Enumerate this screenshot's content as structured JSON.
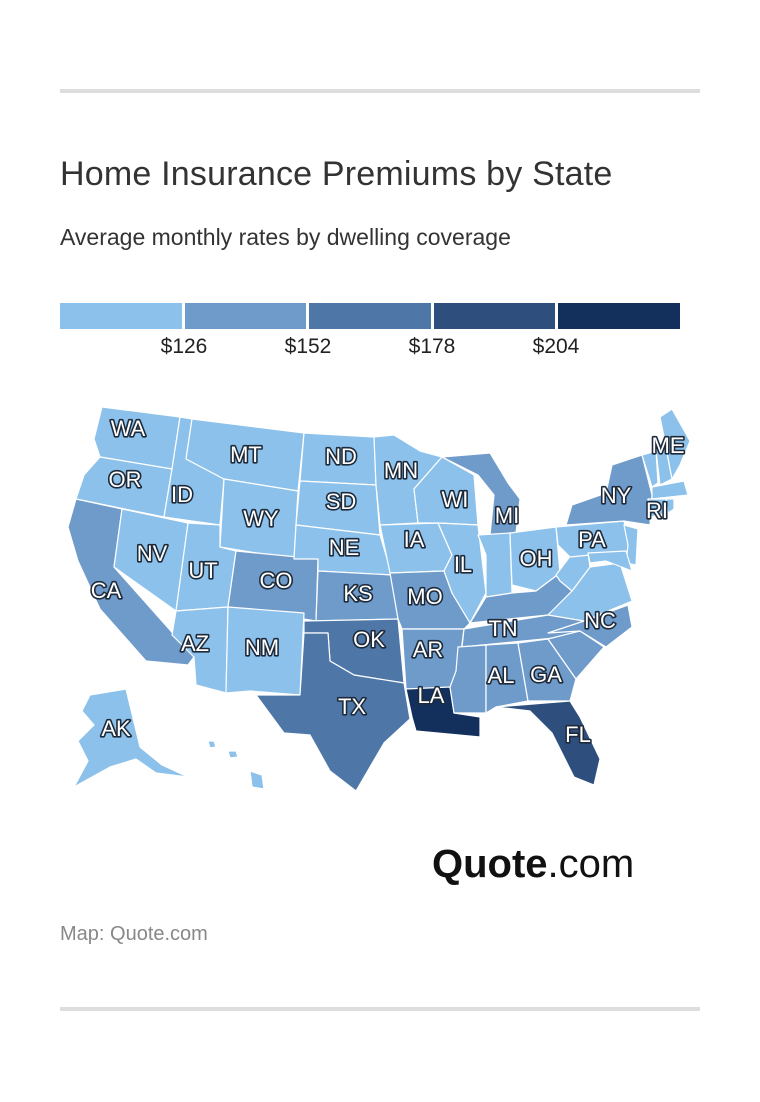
{
  "title": "Home Insurance Premiums by State",
  "subtitle": "Average monthly rates by dwelling coverage",
  "legend": {
    "colors": [
      "#8bc1ea",
      "#6f9bcb",
      "#4e77a8",
      "#2e4f7e",
      "#13305d"
    ],
    "thresholds": [
      "$126",
      "$152",
      "$178",
      "$204"
    ]
  },
  "chart_data": {
    "type": "choropleth",
    "bins": [
      {
        "label": "< $126",
        "color": "#8bc1ea"
      },
      {
        "label": "$126 – $152",
        "color": "#6f9bcb"
      },
      {
        "label": "$152 – $178",
        "color": "#4e77a8"
      },
      {
        "label": "$178 – $204",
        "color": "#2e4f7e"
      },
      {
        "label": "> $204",
        "color": "#13305d"
      }
    ],
    "states": [
      {
        "code": "WA",
        "bin": 0
      },
      {
        "code": "OR",
        "bin": 0
      },
      {
        "code": "CA",
        "bin": 1
      },
      {
        "code": "NV",
        "bin": 0
      },
      {
        "code": "ID",
        "bin": 0
      },
      {
        "code": "MT",
        "bin": 0
      },
      {
        "code": "WY",
        "bin": 0
      },
      {
        "code": "UT",
        "bin": 0
      },
      {
        "code": "AZ",
        "bin": 0
      },
      {
        "code": "CO",
        "bin": 1
      },
      {
        "code": "NM",
        "bin": 0
      },
      {
        "code": "ND",
        "bin": 0
      },
      {
        "code": "SD",
        "bin": 0
      },
      {
        "code": "NE",
        "bin": 0
      },
      {
        "code": "KS",
        "bin": 1
      },
      {
        "code": "OK",
        "bin": 2
      },
      {
        "code": "TX",
        "bin": 2
      },
      {
        "code": "MN",
        "bin": 0
      },
      {
        "code": "IA",
        "bin": 0
      },
      {
        "code": "MO",
        "bin": 1
      },
      {
        "code": "AR",
        "bin": 1
      },
      {
        "code": "LA",
        "bin": 4
      },
      {
        "code": "WI",
        "bin": 0
      },
      {
        "code": "IL",
        "bin": 0
      },
      {
        "code": "MI",
        "bin": 1
      },
      {
        "code": "IN",
        "bin": 0
      },
      {
        "code": "OH",
        "bin": 0
      },
      {
        "code": "KY",
        "bin": 1
      },
      {
        "code": "TN",
        "bin": 1
      },
      {
        "code": "MS",
        "bin": 1
      },
      {
        "code": "AL",
        "bin": 1
      },
      {
        "code": "GA",
        "bin": 1
      },
      {
        "code": "FL",
        "bin": 3
      },
      {
        "code": "SC",
        "bin": 1
      },
      {
        "code": "NC",
        "bin": 1
      },
      {
        "code": "VA",
        "bin": 0
      },
      {
        "code": "WV",
        "bin": 0
      },
      {
        "code": "PA",
        "bin": 0
      },
      {
        "code": "NY",
        "bin": 1
      },
      {
        "code": "ME",
        "bin": 0
      },
      {
        "code": "RI",
        "bin": 0
      },
      {
        "code": "AK",
        "bin": 0
      },
      {
        "code": "HI",
        "bin": 0
      }
    ]
  },
  "labels": [
    "WA",
    "OR",
    "CA",
    "NV",
    "ID",
    "MT",
    "WY",
    "UT",
    "AZ",
    "CO",
    "NM",
    "ND",
    "SD",
    "NE",
    "KS",
    "OK",
    "TX",
    "MN",
    "IA",
    "MO",
    "AR",
    "LA",
    "WI",
    "IL",
    "MI",
    "OH",
    "TN",
    "AL",
    "GA",
    "FL",
    "NC",
    "PA",
    "NY",
    "ME",
    "RI",
    "AK"
  ],
  "brand": {
    "bold": "Quote",
    "light": ".com"
  },
  "credit": "Map: Quote.com"
}
